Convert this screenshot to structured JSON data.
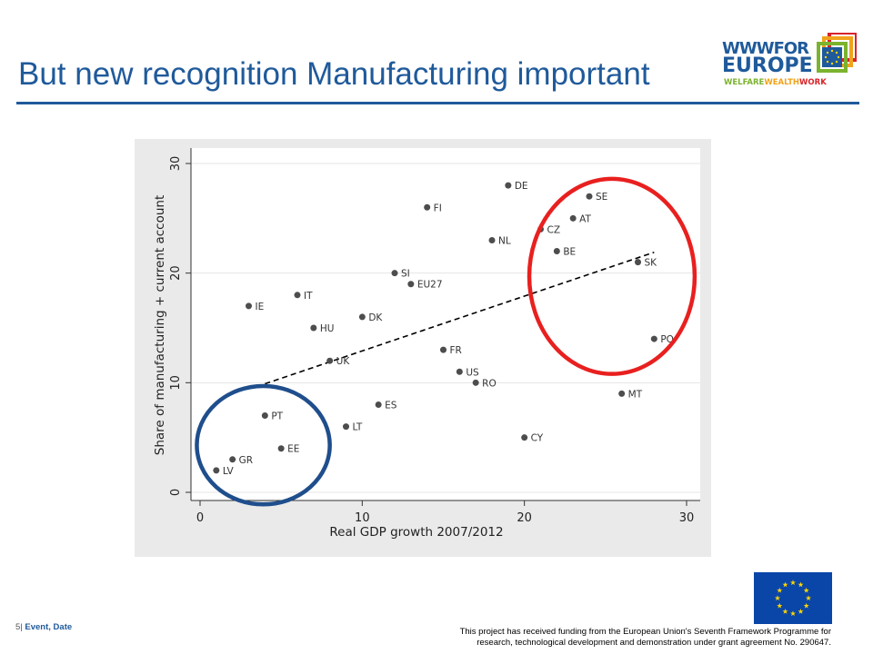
{
  "slide": {
    "title": "But new recognition Manufacturing important",
    "logo": {
      "line1": "WWWFOR",
      "line2": "EUROPE",
      "tag_welfare": "WELFARE",
      "tag_wealth": "WEALTH",
      "tag_work": "WORK",
      "colors": {
        "blue": "#1f5a9b",
        "green": "#7bb32e",
        "orange": "#f0a31c",
        "red": "#d8232a"
      }
    },
    "footer": {
      "page_number": "5",
      "separator": "|",
      "event": "Event, Date",
      "funding_line1": "This project has received funding from the European Union's Seventh Framework Programme for",
      "funding_line2": "research, technological development and demonstration under grant agreement No. 290647."
    },
    "eu_flag": {
      "icon": "eu-flag-icon",
      "background": "#0a46a8",
      "stars": "#ffd500"
    }
  },
  "chart_data": {
    "type": "scatter",
    "xlabel": "Real GDP growth 2007/2012",
    "ylabel": "Share of manufacturing + current account",
    "xlim": [
      0,
      30
    ],
    "ylim": [
      0,
      30
    ],
    "xticks": [
      0,
      10,
      20,
      30
    ],
    "yticks": [
      0,
      10,
      20,
      30
    ],
    "grid": "horizontal",
    "colors": {
      "panel": "#eaeaea",
      "plot": "#ffffff",
      "point": "#4d4d4d",
      "grid": "#e4e4e4"
    },
    "points": [
      {
        "label": "DE",
        "x": 19,
        "y": 28
      },
      {
        "label": "SE",
        "x": 24,
        "y": 27
      },
      {
        "label": "FI",
        "x": 14,
        "y": 26
      },
      {
        "label": "AT",
        "x": 23,
        "y": 25
      },
      {
        "label": "CZ",
        "x": 21,
        "y": 24
      },
      {
        "label": "NL",
        "x": 18,
        "y": 23
      },
      {
        "label": "BE",
        "x": 22,
        "y": 22
      },
      {
        "label": "SK",
        "x": 27,
        "y": 21
      },
      {
        "label": "SI",
        "x": 12,
        "y": 20
      },
      {
        "label": "EU27",
        "x": 13,
        "y": 19
      },
      {
        "label": "IT",
        "x": 6,
        "y": 18
      },
      {
        "label": "IE",
        "x": 3,
        "y": 17
      },
      {
        "label": "DK",
        "x": 10,
        "y": 16
      },
      {
        "label": "HU",
        "x": 7,
        "y": 15
      },
      {
        "label": "PO",
        "x": 28,
        "y": 14
      },
      {
        "label": "FR",
        "x": 15,
        "y": 13
      },
      {
        "label": "UK",
        "x": 8,
        "y": 12
      },
      {
        "label": "US",
        "x": 16,
        "y": 11
      },
      {
        "label": "RO",
        "x": 17,
        "y": 10
      },
      {
        "label": "MT",
        "x": 26,
        "y": 9
      },
      {
        "label": "ES",
        "x": 11,
        "y": 8
      },
      {
        "label": "PT",
        "x": 4,
        "y": 7
      },
      {
        "label": "LT",
        "x": 9,
        "y": 6
      },
      {
        "label": "CY",
        "x": 20,
        "y": 5
      },
      {
        "label": "EE",
        "x": 5,
        "y": 4
      },
      {
        "label": "GR",
        "x": 2,
        "y": 3
      },
      {
        "label": "LV",
        "x": 1,
        "y": 2
      }
    ],
    "trendline": {
      "style": "dashed",
      "color": "#000000",
      "x": [
        4,
        28
      ],
      "y": [
        9.9,
        21.9
      ]
    },
    "highlights": [
      {
        "color": "#1f4e8c",
        "cx": 3.9,
        "cy": 4.3,
        "rx": 4.1,
        "ry": 5.4
      },
      {
        "color": "#e8201f",
        "cx": 25.4,
        "cy": 19.7,
        "rx": 5.1,
        "ry": 8.9
      }
    ]
  }
}
